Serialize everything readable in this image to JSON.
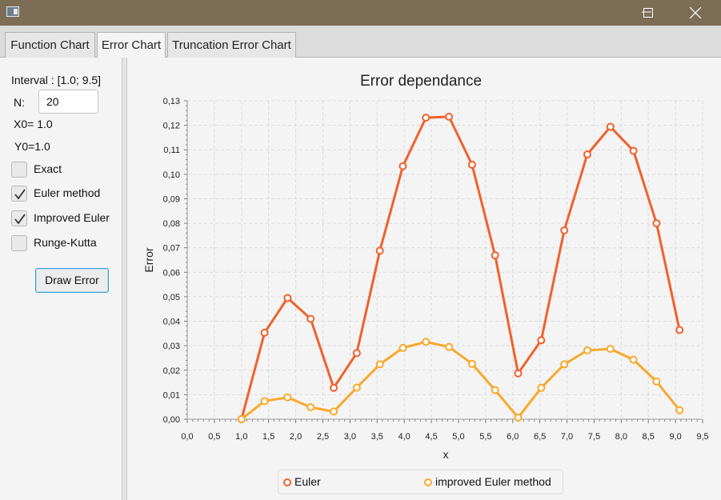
{
  "window": {
    "icons": [
      "app-icon",
      "minimize-icon",
      "maximize-icon",
      "close-icon"
    ]
  },
  "tabs": [
    {
      "label": "Function Chart",
      "active": false
    },
    {
      "label": "Error Chart",
      "active": true
    },
    {
      "label": "Truncation Error Chart",
      "active": false
    }
  ],
  "controls": {
    "interval_label": "Interval : [1.0; 9.5]",
    "n_label": "N:",
    "n_value": "20",
    "x0_label": "X0= 1.0",
    "y0_label": "Y0=1.0",
    "checkboxes": [
      {
        "label": "Exact",
        "checked": false
      },
      {
        "label": "Euler method",
        "checked": true
      },
      {
        "label": "Improved Euler",
        "checked": true
      },
      {
        "label": "Runge-Kutta",
        "checked": false
      }
    ],
    "draw_button": "Draw Error"
  },
  "chart_data": {
    "type": "line",
    "title": "Error dependance",
    "xlabel": "x",
    "ylabel": "Error",
    "xlim": [
      0.0,
      9.5
    ],
    "ylim": [
      0.0,
      0.13
    ],
    "x_ticks": [
      "0,0",
      "0,5",
      "1,0",
      "1,5",
      "2,0",
      "2,5",
      "3,0",
      "3,5",
      "4,0",
      "4,5",
      "5,0",
      "5,5",
      "6,0",
      "6,5",
      "7,0",
      "7,5",
      "8,0",
      "8,5",
      "9,0",
      "9,5"
    ],
    "y_ticks": [
      "0,00",
      "0,01",
      "0,02",
      "0,03",
      "0,04",
      "0,05",
      "0,06",
      "0,07",
      "0,08",
      "0,09",
      "0,10",
      "0,11",
      "0,12",
      "0,13"
    ],
    "grid": true,
    "legend_position": "bottom",
    "x": [
      1.0,
      1.425,
      1.85,
      2.275,
      2.7,
      3.125,
      3.55,
      3.975,
      4.4,
      4.825,
      5.25,
      5.675,
      6.1,
      6.525,
      6.95,
      7.375,
      7.8,
      8.225,
      8.65,
      9.075
    ],
    "series": [
      {
        "name": "Euler",
        "color": "#f0612c",
        "values": [
          0.0,
          0.0353,
          0.0495,
          0.041,
          0.0128,
          0.027,
          0.0688,
          0.1033,
          0.1231,
          0.1235,
          0.1039,
          0.0669,
          0.0187,
          0.0322,
          0.0771,
          0.1081,
          0.1194,
          0.1096,
          0.08,
          0.0364
        ]
      },
      {
        "name": "improved Euler method",
        "color": "#f8a92b",
        "values": [
          0.0,
          0.0074,
          0.0089,
          0.0049,
          0.0031,
          0.0129,
          0.0224,
          0.0291,
          0.0316,
          0.0295,
          0.0226,
          0.0119,
          0.0007,
          0.0128,
          0.0224,
          0.0281,
          0.0287,
          0.0243,
          0.0154,
          0.0037
        ]
      }
    ]
  }
}
